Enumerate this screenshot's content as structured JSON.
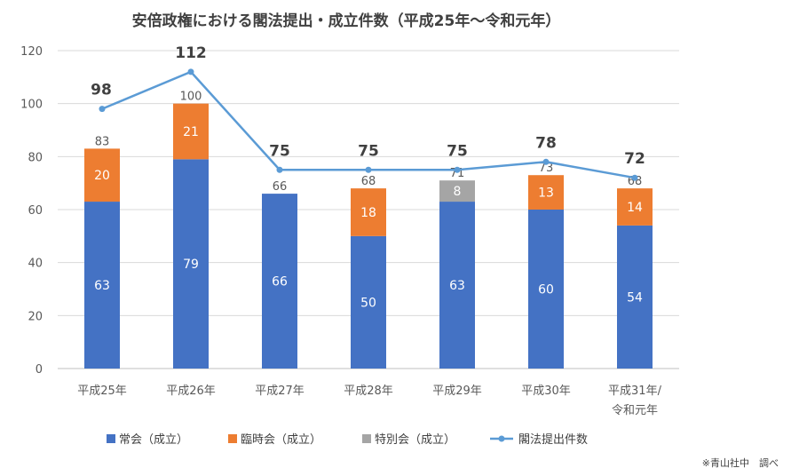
{
  "chart_data": {
    "type": "bar",
    "stacked": true,
    "title": "安倍政権における閣法提出・成立件数（平成25年～令和元年）",
    "categories": [
      [
        "平成25年"
      ],
      [
        "平成26年"
      ],
      [
        "平成27年"
      ],
      [
        "平成28年"
      ],
      [
        "平成29年"
      ],
      [
        "平成30年"
      ],
      [
        "平成31年/",
        "令和元年"
      ]
    ],
    "ylim": [
      0,
      120
    ],
    "yticks": [
      0,
      20,
      40,
      60,
      80,
      100,
      120
    ],
    "grid": true,
    "legend_position": "bottom",
    "series": [
      {
        "name": "常会（成立）",
        "type": "bar",
        "color": "#4472C4",
        "values": [
          63,
          79,
          66,
          50,
          63,
          60,
          54
        ]
      },
      {
        "name": "臨時会（成立）",
        "type": "bar",
        "color": "#ED7D31",
        "values": [
          20,
          21,
          0,
          18,
          0,
          13,
          14
        ]
      },
      {
        "name": "特別会（成立）",
        "type": "bar",
        "color": "#A5A5A5",
        "values": [
          0,
          0,
          0,
          0,
          8,
          0,
          0
        ]
      },
      {
        "name": "閣法提出件数",
        "type": "line",
        "color": "#5B9BD5",
        "values": [
          98,
          112,
          75,
          75,
          75,
          78,
          72
        ]
      }
    ],
    "totals": [
      83,
      100,
      66,
      68,
      71,
      73,
      68
    ]
  },
  "footnote": "※青山社中　調べ"
}
